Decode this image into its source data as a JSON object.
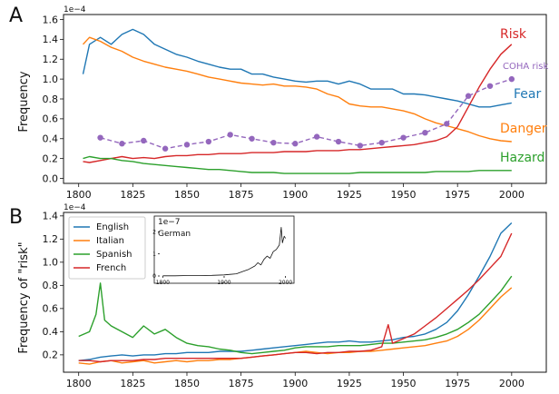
{
  "chart_data": [
    {
      "type": "line",
      "panel_label": "A",
      "title": "",
      "xlabel": "",
      "ylabel": "Frequency",
      "scale_label": "1e−4",
      "xlim": [
        1793,
        2016
      ],
      "ylim": [
        -0.05,
        1.65
      ],
      "xticks": [
        1800,
        1825,
        1850,
        1875,
        1900,
        1925,
        1950,
        1975,
        2000
      ],
      "xtick_labels": [
        "1800",
        "1825",
        "1850",
        "1875",
        "1900",
        "1925",
        "1950",
        "1975",
        "2000"
      ],
      "yticks": [
        0.0,
        0.2,
        0.4,
        0.6,
        0.8,
        1.0,
        1.2,
        1.4,
        1.6
      ],
      "ytick_labels": [
        "0.0",
        "0.2",
        "0.4",
        "0.6",
        "0.8",
        "1.0",
        "1.2",
        "1.4",
        "1.6"
      ],
      "series": [
        {
          "name": "Fear",
          "color": "#1f77b4",
          "dashed": false,
          "x": [
            1802,
            1805,
            1810,
            1815,
            1820,
            1825,
            1830,
            1835,
            1840,
            1845,
            1850,
            1855,
            1860,
            1865,
            1870,
            1875,
            1880,
            1885,
            1890,
            1895,
            1900,
            1905,
            1910,
            1915,
            1920,
            1925,
            1930,
            1935,
            1940,
            1945,
            1950,
            1955,
            1960,
            1965,
            1970,
            1975,
            1980,
            1985,
            1990,
            1995,
            2000
          ],
          "y": [
            1.05,
            1.35,
            1.42,
            1.35,
            1.45,
            1.5,
            1.45,
            1.35,
            1.3,
            1.25,
            1.22,
            1.18,
            1.15,
            1.12,
            1.1,
            1.1,
            1.05,
            1.05,
            1.02,
            1.0,
            0.98,
            0.97,
            0.98,
            0.98,
            0.95,
            0.98,
            0.95,
            0.9,
            0.9,
            0.9,
            0.85,
            0.85,
            0.84,
            0.82,
            0.8,
            0.78,
            0.75,
            0.72,
            0.72,
            0.74,
            0.76
          ]
        },
        {
          "name": "Danger",
          "color": "#ff7f0e",
          "dashed": false,
          "x": [
            1802,
            1805,
            1810,
            1815,
            1820,
            1825,
            1830,
            1835,
            1840,
            1845,
            1850,
            1855,
            1860,
            1865,
            1870,
            1875,
            1880,
            1885,
            1890,
            1895,
            1900,
            1905,
            1910,
            1915,
            1920,
            1925,
            1930,
            1935,
            1940,
            1945,
            1950,
            1955,
            1960,
            1965,
            1970,
            1975,
            1980,
            1985,
            1990,
            1995,
            2000
          ],
          "y": [
            1.35,
            1.42,
            1.38,
            1.32,
            1.28,
            1.22,
            1.18,
            1.15,
            1.12,
            1.1,
            1.08,
            1.05,
            1.02,
            1.0,
            0.98,
            0.96,
            0.95,
            0.94,
            0.95,
            0.93,
            0.93,
            0.92,
            0.9,
            0.85,
            0.82,
            0.75,
            0.73,
            0.72,
            0.72,
            0.7,
            0.68,
            0.65,
            0.6,
            0.56,
            0.53,
            0.5,
            0.47,
            0.43,
            0.4,
            0.38,
            0.37
          ]
        },
        {
          "name": "Risk",
          "color": "#d62728",
          "dashed": false,
          "x": [
            1802,
            1805,
            1810,
            1815,
            1820,
            1825,
            1830,
            1835,
            1840,
            1845,
            1850,
            1855,
            1860,
            1865,
            1870,
            1875,
            1880,
            1885,
            1890,
            1895,
            1900,
            1905,
            1910,
            1915,
            1920,
            1925,
            1930,
            1935,
            1940,
            1945,
            1950,
            1955,
            1960,
            1965,
            1970,
            1975,
            1980,
            1985,
            1990,
            1995,
            2000
          ],
          "y": [
            0.17,
            0.16,
            0.18,
            0.2,
            0.22,
            0.2,
            0.21,
            0.2,
            0.22,
            0.23,
            0.23,
            0.24,
            0.24,
            0.25,
            0.25,
            0.25,
            0.26,
            0.26,
            0.26,
            0.27,
            0.27,
            0.27,
            0.28,
            0.28,
            0.28,
            0.29,
            0.29,
            0.3,
            0.31,
            0.32,
            0.33,
            0.34,
            0.36,
            0.38,
            0.42,
            0.52,
            0.72,
            0.92,
            1.1,
            1.25,
            1.35
          ]
        },
        {
          "name": "Hazard",
          "color": "#2ca02c",
          "dashed": false,
          "x": [
            1802,
            1805,
            1810,
            1815,
            1820,
            1825,
            1830,
            1835,
            1840,
            1845,
            1850,
            1855,
            1860,
            1865,
            1870,
            1875,
            1880,
            1885,
            1890,
            1895,
            1900,
            1905,
            1910,
            1915,
            1920,
            1925,
            1930,
            1935,
            1940,
            1945,
            1950,
            1955,
            1960,
            1965,
            1970,
            1975,
            1980,
            1985,
            1990,
            1995,
            2000
          ],
          "y": [
            0.2,
            0.22,
            0.2,
            0.2,
            0.18,
            0.17,
            0.15,
            0.14,
            0.13,
            0.12,
            0.11,
            0.1,
            0.09,
            0.09,
            0.08,
            0.07,
            0.06,
            0.06,
            0.06,
            0.05,
            0.05,
            0.05,
            0.05,
            0.05,
            0.05,
            0.05,
            0.06,
            0.06,
            0.06,
            0.06,
            0.06,
            0.06,
            0.06,
            0.07,
            0.07,
            0.07,
            0.07,
            0.08,
            0.08,
            0.08,
            0.08
          ]
        },
        {
          "name": "COHA risk",
          "color": "#9467bd",
          "dashed": true,
          "markers": true,
          "x": [
            1810,
            1820,
            1830,
            1840,
            1850,
            1860,
            1870,
            1880,
            1890,
            1900,
            1910,
            1920,
            1930,
            1940,
            1950,
            1960,
            1970,
            1980,
            1990,
            2000
          ],
          "y": [
            0.41,
            0.35,
            0.38,
            0.3,
            0.34,
            0.37,
            0.44,
            0.4,
            0.36,
            0.35,
            0.42,
            0.37,
            0.33,
            0.36,
            0.41,
            0.46,
            0.55,
            0.83,
            0.93,
            1.0
          ]
        }
      ],
      "end_labels": [
        "Risk",
        "COHA risk",
        "Fear",
        "Danger",
        "Hazard"
      ]
    },
    {
      "type": "line",
      "panel_label": "B",
      "title": "",
      "xlabel": "",
      "ylabel": "Frequency of \"risk\"",
      "scale_label": "1e−4",
      "xlim": [
        1793,
        2016
      ],
      "ylim": [
        0.05,
        1.43
      ],
      "xticks": [
        1800,
        1825,
        1850,
        1875,
        1900,
        1925,
        1950,
        1975,
        2000
      ],
      "xtick_labels": [
        "1800",
        "1825",
        "1850",
        "1875",
        "1900",
        "1925",
        "1950",
        "1975",
        "2000"
      ],
      "yticks": [
        0.2,
        0.4,
        0.6,
        0.8,
        1.0,
        1.2,
        1.4
      ],
      "ytick_labels": [
        "0.2",
        "0.4",
        "0.6",
        "0.8",
        "1.0",
        "1.2",
        "1.4"
      ],
      "legend_position": "top-left",
      "series": [
        {
          "name": "English",
          "color": "#1f77b4",
          "x": [
            1800,
            1805,
            1810,
            1815,
            1820,
            1825,
            1830,
            1835,
            1840,
            1845,
            1850,
            1855,
            1860,
            1865,
            1870,
            1875,
            1880,
            1885,
            1890,
            1895,
            1900,
            1905,
            1910,
            1915,
            1920,
            1925,
            1930,
            1935,
            1940,
            1945,
            1950,
            1955,
            1960,
            1965,
            1970,
            1975,
            1980,
            1985,
            1990,
            1995,
            2000
          ],
          "y": [
            0.15,
            0.16,
            0.18,
            0.19,
            0.2,
            0.19,
            0.2,
            0.2,
            0.21,
            0.21,
            0.22,
            0.22,
            0.22,
            0.23,
            0.23,
            0.23,
            0.24,
            0.25,
            0.26,
            0.27,
            0.28,
            0.29,
            0.3,
            0.31,
            0.31,
            0.32,
            0.31,
            0.31,
            0.32,
            0.33,
            0.35,
            0.36,
            0.38,
            0.42,
            0.48,
            0.58,
            0.72,
            0.88,
            1.05,
            1.25,
            1.34
          ]
        },
        {
          "name": "Italian",
          "color": "#ff7f0e",
          "x": [
            1800,
            1805,
            1810,
            1815,
            1820,
            1825,
            1830,
            1835,
            1840,
            1845,
            1850,
            1855,
            1860,
            1865,
            1870,
            1875,
            1880,
            1885,
            1890,
            1895,
            1900,
            1905,
            1910,
            1915,
            1920,
            1925,
            1930,
            1935,
            1940,
            1945,
            1950,
            1955,
            1960,
            1965,
            1970,
            1975,
            1980,
            1985,
            1990,
            1995,
            2000
          ],
          "y": [
            0.13,
            0.12,
            0.14,
            0.15,
            0.13,
            0.14,
            0.15,
            0.13,
            0.14,
            0.15,
            0.14,
            0.15,
            0.15,
            0.16,
            0.16,
            0.17,
            0.18,
            0.19,
            0.2,
            0.21,
            0.22,
            0.23,
            0.22,
            0.21,
            0.22,
            0.22,
            0.23,
            0.23,
            0.24,
            0.25,
            0.26,
            0.27,
            0.28,
            0.3,
            0.32,
            0.36,
            0.42,
            0.5,
            0.6,
            0.7,
            0.78
          ]
        },
        {
          "name": "Spanish",
          "color": "#2ca02c",
          "x": [
            1800,
            1805,
            1808,
            1810,
            1812,
            1815,
            1820,
            1825,
            1830,
            1835,
            1840,
            1845,
            1850,
            1855,
            1860,
            1865,
            1870,
            1875,
            1880,
            1885,
            1890,
            1895,
            1900,
            1905,
            1910,
            1915,
            1920,
            1925,
            1930,
            1935,
            1940,
            1945,
            1950,
            1955,
            1960,
            1965,
            1970,
            1975,
            1980,
            1985,
            1990,
            1995,
            2000
          ],
          "y": [
            0.36,
            0.4,
            0.55,
            0.82,
            0.5,
            0.45,
            0.4,
            0.35,
            0.45,
            0.38,
            0.42,
            0.35,
            0.3,
            0.28,
            0.27,
            0.25,
            0.24,
            0.22,
            0.21,
            0.22,
            0.23,
            0.24,
            0.26,
            0.27,
            0.27,
            0.27,
            0.28,
            0.28,
            0.28,
            0.29,
            0.3,
            0.3,
            0.31,
            0.32,
            0.33,
            0.35,
            0.38,
            0.42,
            0.48,
            0.55,
            0.65,
            0.75,
            0.88
          ]
        },
        {
          "name": "French",
          "color": "#d62728",
          "x": [
            1800,
            1805,
            1810,
            1815,
            1820,
            1825,
            1830,
            1835,
            1840,
            1845,
            1850,
            1855,
            1860,
            1865,
            1870,
            1875,
            1880,
            1885,
            1890,
            1895,
            1900,
            1905,
            1910,
            1915,
            1920,
            1925,
            1930,
            1935,
            1940,
            1943,
            1945,
            1950,
            1955,
            1960,
            1965,
            1970,
            1975,
            1980,
            1985,
            1990,
            1995,
            2000
          ],
          "y": [
            0.15,
            0.15,
            0.14,
            0.15,
            0.15,
            0.15,
            0.16,
            0.16,
            0.17,
            0.17,
            0.17,
            0.17,
            0.17,
            0.17,
            0.17,
            0.17,
            0.18,
            0.19,
            0.2,
            0.21,
            0.22,
            0.22,
            0.21,
            0.22,
            0.22,
            0.23,
            0.23,
            0.24,
            0.27,
            0.46,
            0.3,
            0.34,
            0.38,
            0.45,
            0.52,
            0.6,
            0.68,
            0.76,
            0.85,
            0.95,
            1.05,
            1.25
          ]
        }
      ],
      "inset": {
        "scale_label": "1e−7",
        "title": "German",
        "xlim": [
          1795,
          2008
        ],
        "ylim": [
          0,
          2.3
        ],
        "xticks": [
          1800,
          1900,
          2000
        ],
        "xtick_labels": [
          "1800",
          "1900",
          "2000"
        ],
        "yticks": [
          0,
          1,
          2
        ],
        "ytick_labels": [
          "0",
          "1",
          "2"
        ],
        "series": [
          {
            "name": "German",
            "color": "#111111",
            "x": [
              1800,
              1820,
              1840,
              1860,
              1880,
              1900,
              1920,
              1930,
              1940,
              1950,
              1955,
              1960,
              1965,
              1970,
              1975,
              1980,
              1985,
              1990,
              1993,
              1995,
              1998,
              2000
            ],
            "y": [
              0.01,
              0.01,
              0.02,
              0.02,
              0.03,
              0.05,
              0.1,
              0.2,
              0.3,
              0.45,
              0.6,
              0.5,
              0.75,
              0.9,
              0.8,
              1.1,
              1.2,
              1.4,
              2.2,
              1.5,
              1.8,
              1.7
            ]
          }
        ]
      }
    }
  ]
}
